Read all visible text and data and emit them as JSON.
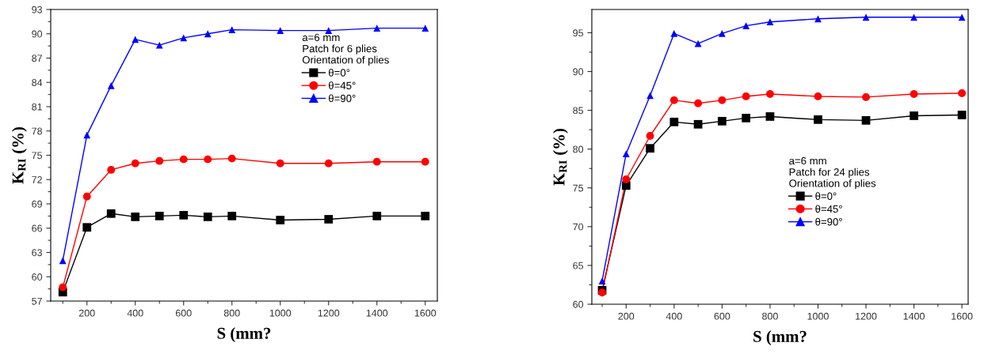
{
  "chart_data": [
    {
      "type": "line",
      "xlabel": "S (mm?",
      "ylabel": "K$_{RI}$ (%)",
      "legend_title": "a=6 mm\nPatch for 6 plies\nOrientation of plies",
      "x": [
        100,
        200,
        300,
        400,
        500,
        600,
        700,
        800,
        1000,
        1200,
        1400,
        1600
      ],
      "xlim": [
        50,
        1650
      ],
      "xticks": [
        200,
        400,
        600,
        800,
        1000,
        1200,
        1400,
        1600
      ],
      "ylim": [
        57,
        93
      ],
      "yticks": [
        57,
        60,
        63,
        66,
        69,
        72,
        75,
        78,
        81,
        84,
        87,
        90,
        93
      ],
      "grid": false,
      "legend": "top right",
      "line_style": "solid",
      "series": [
        {
          "name": "θ=0°",
          "color": "#000000",
          "marker": "square",
          "values": [
            58.1,
            66.1,
            67.8,
            67.4,
            67.5,
            67.6,
            67.4,
            67.5,
            67.0,
            67.1,
            67.5,
            67.5
          ]
        },
        {
          "name": "θ=45°",
          "color": "#ff0000",
          "marker": "circle",
          "values": [
            58.7,
            69.9,
            73.2,
            74.0,
            74.3,
            74.5,
            74.5,
            74.6,
            74.0,
            74.0,
            74.2,
            74.2
          ]
        },
        {
          "name": "θ=90°",
          "color": "#0000ff",
          "marker": "triangle",
          "values": [
            62.0,
            77.5,
            83.6,
            89.3,
            88.6,
            89.5,
            90.0,
            90.5,
            90.4,
            90.4,
            90.7,
            90.7
          ]
        }
      ]
    },
    {
      "type": "line",
      "xlabel": "S (mm?",
      "ylabel": "K$_{RI}$ (%)",
      "legend_title": "a=6 mm\nPatch for 24 plies\nOrientation of plies",
      "x": [
        100,
        200,
        300,
        400,
        500,
        600,
        700,
        800,
        1000,
        1200,
        1400,
        1600
      ],
      "xlim": [
        57,
        1626
      ],
      "xticks": [
        200,
        400,
        600,
        800,
        1000,
        1200,
        1400,
        1600
      ],
      "ylim": [
        60,
        98
      ],
      "yticks": [
        60,
        65,
        70,
        75,
        80,
        85,
        90,
        95
      ],
      "grid": false,
      "legend": "center right",
      "line_style": "solid",
      "series": [
        {
          "name": "θ=0°",
          "color": "#000000",
          "marker": "square",
          "values": [
            61.8,
            75.3,
            80.1,
            83.5,
            83.2,
            83.6,
            84.0,
            84.2,
            83.8,
            83.7,
            84.3,
            84.4
          ]
        },
        {
          "name": "θ=45°",
          "color": "#ff0000",
          "marker": "circle",
          "values": [
            61.5,
            76.1,
            81.7,
            86.3,
            85.9,
            86.3,
            86.8,
            87.1,
            86.8,
            86.7,
            87.1,
            87.2
          ]
        },
        {
          "name": "θ=90°",
          "color": "#0000ff",
          "marker": "triangle",
          "values": [
            63.0,
            79.4,
            86.9,
            94.9,
            93.6,
            94.9,
            95.9,
            96.4,
            96.8,
            97.0,
            97.0,
            97.0
          ]
        }
      ]
    }
  ]
}
